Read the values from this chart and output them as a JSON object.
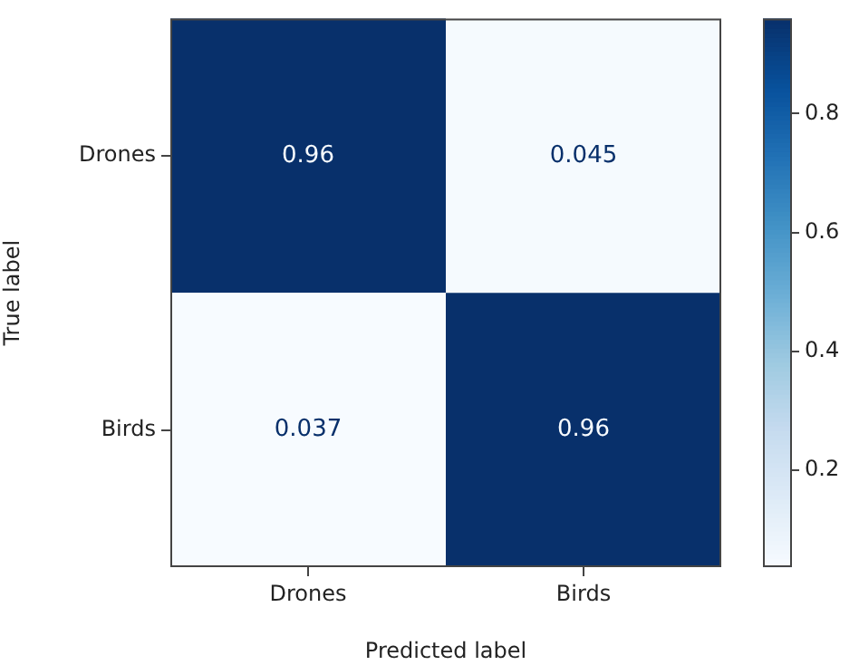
{
  "chart_data": {
    "type": "heatmap",
    "xlabel": "Predicted label",
    "ylabel": "True label",
    "categories": [
      "Drones",
      "Birds"
    ],
    "y_categories": [
      "Drones",
      "Birds"
    ],
    "cells": [
      [
        0.96,
        0.045
      ],
      [
        0.037,
        0.96
      ]
    ],
    "cell_labels": [
      [
        "0.96",
        "0.045"
      ],
      [
        "0.037",
        "0.96"
      ]
    ],
    "clim": [
      0.037,
      0.96
    ],
    "cticks": [
      0.2,
      0.4,
      0.6,
      0.8
    ]
  }
}
